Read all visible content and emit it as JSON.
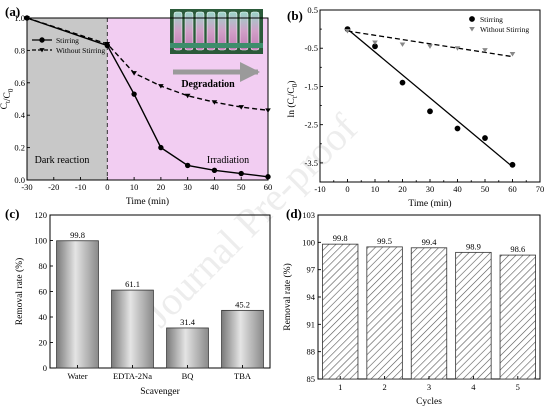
{
  "watermark": "Journal Pre-proof",
  "chart_data": [
    {
      "id": "a",
      "panel_label": "(a)",
      "type": "line",
      "xlabel": "Time (min)",
      "ylabel": "C",
      "ylabel_sub": "t",
      "ylabel_tail": "/C",
      "ylabel_sub2": "0",
      "xlim": [
        -30,
        60
      ],
      "ylim": [
        0.0,
        1.0
      ],
      "x_ticks": [
        -30,
        -20,
        -10,
        0,
        10,
        20,
        30,
        40,
        50,
        60
      ],
      "x_tick_labels": [
        "-30",
        "-20",
        "-10",
        "0",
        "10",
        "20",
        "30",
        "40",
        "50",
        "60"
      ],
      "y_ticks": [
        0.0,
        0.2,
        0.4,
        0.6,
        0.8,
        1.0
      ],
      "y_tick_labels": [
        "0.0",
        "0.2",
        "0.4",
        "0.6",
        "0.8",
        "1.0"
      ],
      "regions": [
        {
          "label": "Dark reaction",
          "from": -30,
          "to": 0,
          "color": "#c8c8c8"
        },
        {
          "label": "Irradiation",
          "from": 0,
          "to": 60,
          "color": "#f2cdf2"
        }
      ],
      "divider_x": 0,
      "photo_label": "Degradation",
      "grid": false,
      "legend_position": "upper-left",
      "series": [
        {
          "name": "Stirring",
          "style": "solid",
          "marker": "circle",
          "color": "#000000",
          "x": [
            -30,
            0,
            10,
            20,
            30,
            40,
            50,
            60
          ],
          "y": [
            1.0,
            0.83,
            0.53,
            0.2,
            0.09,
            0.06,
            0.04,
            0.02
          ]
        },
        {
          "name": "Without Stirring",
          "style": "dashed",
          "marker": "triangle-down",
          "color": "#000000",
          "x": [
            -30,
            0,
            10,
            20,
            30,
            40,
            50,
            60
          ],
          "y": [
            1.0,
            0.84,
            0.66,
            0.58,
            0.52,
            0.48,
            0.45,
            0.43
          ]
        }
      ]
    },
    {
      "id": "b",
      "panel_label": "(b)",
      "type": "scatter",
      "xlabel": "Time (min)",
      "ylabel": "ln (C",
      "ylabel_sub": "t",
      "ylabel_tail": "/C",
      "ylabel_sub2": "0",
      "ylabel_end": ")",
      "xlim": [
        -10,
        70
      ],
      "ylim": [
        -4.0,
        0.5
      ],
      "x_ticks": [
        -10,
        -5,
        0,
        5,
        10,
        15,
        20,
        25,
        30,
        35,
        40,
        45,
        50,
        55,
        60,
        65,
        70
      ],
      "x_tick_labels": [
        "-10",
        "",
        "0",
        "",
        "10",
        "",
        "20",
        "",
        "30",
        "",
        "40",
        "",
        "50",
        "",
        "60",
        "",
        "70"
      ],
      "y_ticks": [
        -4.0,
        -3.5,
        -3.0,
        -2.5,
        -2.0,
        -1.5,
        -1.0,
        -0.5,
        0.0,
        0.5
      ],
      "y_tick_labels": [
        "",
        "-3.5",
        "",
        "-2.5",
        "",
        "-1.5",
        "",
        "-0.5",
        "",
        "0.5"
      ],
      "grid": false,
      "legend_position": "top-right",
      "series": [
        {
          "name": "Stirring",
          "marker": "circle",
          "color": "#000000",
          "x": [
            0,
            10,
            20,
            30,
            40,
            50,
            60
          ],
          "y": [
            0.0,
            -0.45,
            -1.4,
            -2.15,
            -2.6,
            -2.85,
            -3.55
          ],
          "fit": {
            "style": "solid",
            "x": [
              0,
              60
            ],
            "y": [
              0.0,
              -3.6
            ]
          }
        },
        {
          "name": "Without Stirring",
          "marker": "triangle-down",
          "color": "#888888",
          "x": [
            0,
            10,
            20,
            30,
            40,
            50,
            60
          ],
          "y": [
            -0.05,
            -0.35,
            -0.4,
            -0.45,
            -0.5,
            -0.55,
            -0.65
          ],
          "fit": {
            "style": "dashed",
            "x": [
              0,
              60
            ],
            "y": [
              -0.05,
              -0.72
            ]
          }
        }
      ]
    },
    {
      "id": "c",
      "panel_label": "(c)",
      "type": "bar",
      "xlabel": "Scavenger",
      "ylabel": "Removal rate (%)",
      "categories": [
        "Water",
        "EDTA-2Na",
        "BQ",
        "TBA"
      ],
      "values": [
        99.8,
        61.1,
        31.4,
        45.2
      ],
      "value_labels": [
        "99.8",
        "61.1",
        "31.4",
        "45.2"
      ],
      "ylim": [
        0,
        120
      ],
      "y_ticks": [
        0,
        20,
        40,
        60,
        80,
        100,
        120
      ],
      "y_tick_labels": [
        "0",
        "20",
        "40",
        "60",
        "80",
        "100",
        "120"
      ],
      "fill": "gradient-gray",
      "grid": false
    },
    {
      "id": "d",
      "panel_label": "(d)",
      "type": "bar",
      "xlabel": "Cycles",
      "ylabel": "Removal rate (%)",
      "categories": [
        "1",
        "2",
        "3",
        "4",
        "5"
      ],
      "values": [
        99.8,
        99.5,
        99.4,
        98.9,
        98.6
      ],
      "value_labels": [
        "99.8",
        "99.5",
        "99.4",
        "98.9",
        "98.6"
      ],
      "ylim": [
        85,
        103
      ],
      "y_ticks": [
        85,
        88,
        91,
        94,
        97,
        100,
        103
      ],
      "y_tick_labels": [
        "85",
        "88",
        "91",
        "94",
        "97",
        "100",
        "103"
      ],
      "fill": "hatched",
      "grid": false
    }
  ]
}
